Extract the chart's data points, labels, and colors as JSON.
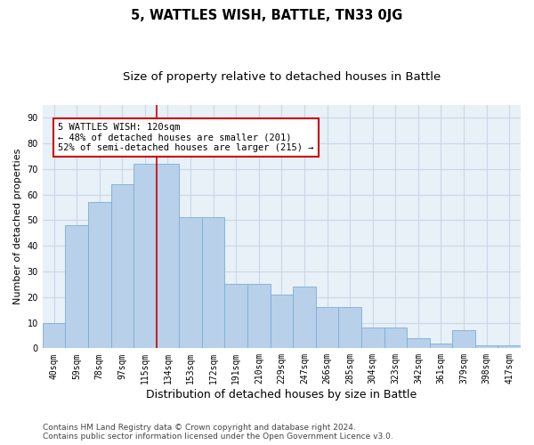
{
  "title": "5, WATTLES WISH, BATTLE, TN33 0JG",
  "subtitle": "Size of property relative to detached houses in Battle",
  "xlabel": "Distribution of detached houses by size in Battle",
  "ylabel": "Number of detached properties",
  "categories": [
    "40sqm",
    "59sqm",
    "78sqm",
    "97sqm",
    "115sqm",
    "134sqm",
    "153sqm",
    "172sqm",
    "191sqm",
    "210sqm",
    "229sqm",
    "247sqm",
    "266sqm",
    "285sqm",
    "304sqm",
    "323sqm",
    "342sqm",
    "361sqm",
    "379sqm",
    "398sqm",
    "417sqm"
  ],
  "bar_heights": [
    10,
    48,
    57,
    64,
    72,
    72,
    51,
    51,
    25,
    25,
    21,
    24,
    16,
    16,
    8,
    8,
    4,
    2,
    7,
    1,
    1
  ],
  "bar_color": "#b8d0ea",
  "bar_edge_color": "#7aafd4",
  "grid_color": "#c8d8e8",
  "background_color": "#e8f0f8",
  "vline_x": 4.5,
  "vline_color": "#cc0000",
  "annotation_text": "5 WATTLES WISH: 120sqm\n← 48% of detached houses are smaller (201)\n52% of semi-detached houses are larger (215) →",
  "annotation_box_facecolor": "#ffffff",
  "annotation_box_edge": "#cc0000",
  "ylim": [
    0,
    95
  ],
  "yticks": [
    0,
    10,
    20,
    30,
    40,
    50,
    60,
    70,
    80,
    90
  ],
  "footnote": "Contains HM Land Registry data © Crown copyright and database right 2024.\nContains public sector information licensed under the Open Government Licence v3.0.",
  "title_fontsize": 10.5,
  "subtitle_fontsize": 9.5,
  "xlabel_fontsize": 9,
  "ylabel_fontsize": 8,
  "tick_fontsize": 7,
  "annot_fontsize": 7.5,
  "footnote_fontsize": 6.5
}
